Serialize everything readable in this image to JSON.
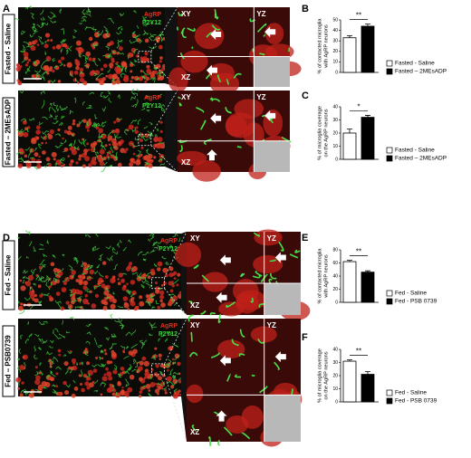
{
  "panel_labels": [
    "A",
    "B",
    "C",
    "D",
    "E",
    "F"
  ],
  "images": [
    {
      "condition": "Fasted - Saline",
      "stain_1": "AgRP",
      "stain_2": "P2Y12",
      "views": [
        "XY",
        "YZ",
        "XZ"
      ]
    },
    {
      "condition": "Fasted – 2MEsADP",
      "stain_1": "AgRP",
      "stain_2": "P2Y12",
      "views": [
        "XY",
        "YZ",
        "XZ"
      ]
    },
    {
      "condition": "Fed - Saline",
      "stain_1": "AgRP",
      "stain_2": "P2Y12",
      "views": [
        "XY",
        "YZ",
        "XZ"
      ]
    },
    {
      "condition": "Fed – PSB0739",
      "stain_1": "AgRP",
      "stain_2": "P2Y12",
      "views": [
        "XY",
        "YZ",
        "XZ"
      ]
    }
  ],
  "chart_data": [
    {
      "type": "bar",
      "ylabel": [
        "% of contacted microglia",
        "with AgRP neurons"
      ],
      "ylim": [
        0,
        50
      ],
      "yticks": [
        0,
        10,
        20,
        30,
        40,
        50
      ],
      "annotation": "**",
      "series": [
        {
          "name": "Fasted - Saline",
          "color": "#ffffff",
          "values": [
            33
          ],
          "errors": [
            2
          ]
        },
        {
          "name": "Fasted – 2MEsADP",
          "color": "#000000",
          "values": [
            44
          ],
          "errors": [
            2
          ]
        }
      ]
    },
    {
      "type": "bar",
      "ylabel": [
        "% of microglia coverage",
        "on the AgRP neurons"
      ],
      "ylim": [
        0,
        40
      ],
      "yticks": [
        0,
        10,
        20,
        30,
        40
      ],
      "annotation": "*",
      "series": [
        {
          "name": "Fasted - Saline",
          "color": "#ffffff",
          "values": [
            20
          ],
          "errors": [
            3
          ]
        },
        {
          "name": "Fasted – 2MEsADP",
          "color": "#000000",
          "values": [
            32
          ],
          "errors": [
            1.5
          ]
        }
      ]
    },
    {
      "type": "bar",
      "ylabel": [
        "% of contacted microglia",
        "with AgRP neurons"
      ],
      "ylim": [
        0,
        80
      ],
      "yticks": [
        0,
        20,
        40,
        60,
        80
      ],
      "annotation": "**",
      "series": [
        {
          "name": "Fed - Saline",
          "color": "#ffffff",
          "values": [
            62
          ],
          "errors": [
            2
          ]
        },
        {
          "name": "Fed - PSB 0739",
          "color": "#000000",
          "values": [
            46
          ],
          "errors": [
            2
          ]
        }
      ]
    },
    {
      "type": "bar",
      "ylabel": [
        "% of microglia coverage",
        "on the AgRP neurons"
      ],
      "ylim": [
        0,
        40
      ],
      "yticks": [
        0,
        10,
        20,
        30,
        40
      ],
      "annotation": "**",
      "series": [
        {
          "name": "Fed - Saline",
          "color": "#ffffff",
          "values": [
            31
          ],
          "errors": [
            1
          ]
        },
        {
          "name": "Fed - PSB 0739",
          "color": "#000000",
          "values": [
            21
          ],
          "errors": [
            2
          ]
        }
      ]
    }
  ]
}
